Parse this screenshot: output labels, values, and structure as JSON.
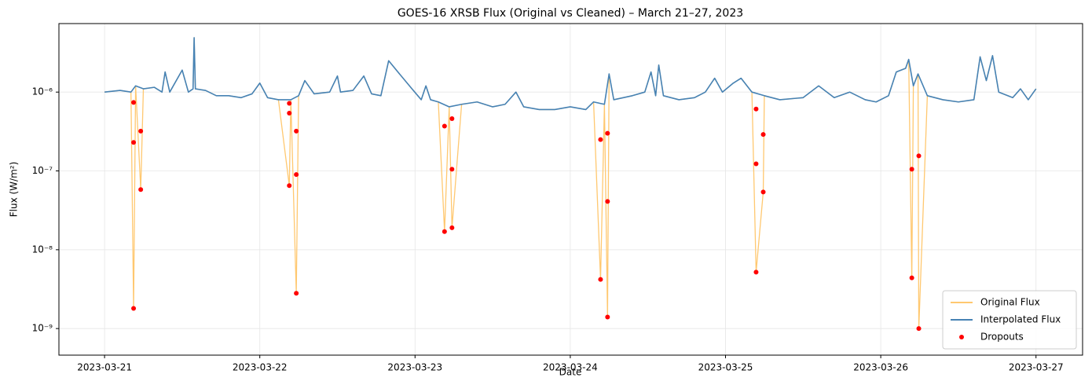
{
  "chart_data": {
    "type": "line",
    "title": "GOES-16 XRSB Flux (Original vs Cleaned) – March 21–27, 2023",
    "x_label": "Date",
    "y_label": "Flux (W/m²)",
    "xlim": [
      -0.294,
      6.3
    ],
    "xticks": [
      {
        "value": 0,
        "label": "2023-03-21"
      },
      {
        "value": 1,
        "label": "2023-03-22"
      },
      {
        "value": 2,
        "label": "2023-03-23"
      },
      {
        "value": 3,
        "label": "2023-03-24"
      },
      {
        "value": 4,
        "label": "2023-03-25"
      },
      {
        "value": 5,
        "label": "2023-03-26"
      },
      {
        "value": 6,
        "label": "2023-03-27"
      }
    ],
    "ylim": [
      4.6e-10,
      7.4e-06
    ],
    "yticks": [
      {
        "value": 1e-09,
        "label": "10⁻⁹"
      },
      {
        "value": 1e-08,
        "label": "10⁻⁸"
      },
      {
        "value": 1e-07,
        "label": "10⁻⁷"
      },
      {
        "value": 1e-06,
        "label": "10⁻⁶"
      }
    ],
    "log_y": true,
    "grid": true,
    "legend": "lower right",
    "series": [
      {
        "name": "Original Flux",
        "type": "line",
        "color": "#ffc870",
        "x": [
          0,
          0.1,
          0.17,
          0.187,
          0.2,
          0.233,
          0.25,
          0.32,
          0.37,
          0.39,
          0.42,
          0.5,
          0.54,
          0.57,
          0.577,
          0.585,
          0.65,
          0.72,
          0.8,
          0.88,
          0.95,
          1.0,
          1.05,
          1.12,
          1.19,
          1.2,
          1.235,
          1.25,
          1.29,
          1.35,
          1.45,
          1.5,
          1.52,
          1.6,
          1.67,
          1.72,
          1.78,
          1.83,
          1.9,
          1.98,
          2.04,
          2.07,
          2.1,
          2.15,
          2.19,
          2.22,
          2.238,
          2.3,
          2.4,
          2.5,
          2.58,
          2.65,
          2.7,
          2.8,
          2.9,
          3.0,
          3.1,
          3.15,
          3.195,
          3.22,
          3.24,
          3.25,
          3.28,
          3.4,
          3.48,
          3.52,
          3.55,
          3.57,
          3.6,
          3.7,
          3.8,
          3.87,
          3.93,
          3.98,
          4.05,
          4.1,
          4.17,
          4.197,
          4.243,
          4.25,
          4.35,
          4.5,
          4.6,
          4.7,
          4.8,
          4.9,
          4.97,
          5.05,
          5.1,
          5.16,
          5.18,
          5.2,
          5.21,
          5.24,
          5.245,
          5.3,
          5.4,
          5.5,
          5.6,
          5.64,
          5.68,
          5.72,
          5.76,
          5.85,
          5.9,
          5.95,
          6.0
        ],
        "values": [
          1e-06,
          1.05e-06,
          1e-06,
          1.8e-09,
          1.2e-06,
          5.8e-08,
          1.1e-06,
          1.15e-06,
          1e-06,
          1.8e-06,
          1e-06,
          1.9e-06,
          1e-06,
          1.1e-06,
          4.9e-06,
          1.1e-06,
          1.05e-06,
          9e-07,
          9e-07,
          8.5e-07,
          9.5e-07,
          1.3e-06,
          8.5e-07,
          8e-07,
          6.5e-08,
          8e-07,
          2.8e-09,
          9e-07,
          1.4e-06,
          9.5e-07,
          1e-06,
          1.6e-06,
          1e-06,
          1.05e-06,
          1.6e-06,
          9.5e-07,
          9e-07,
          2.5e-06,
          1.7e-06,
          1.1e-06,
          8e-07,
          1.2e-06,
          8e-07,
          7.5e-07,
          1.7e-08,
          6.5e-07,
          1.9e-08,
          7e-07,
          7.5e-07,
          6.5e-07,
          7e-07,
          1e-06,
          6.5e-07,
          6e-07,
          6e-07,
          6.5e-07,
          6e-07,
          7.5e-07,
          4.2e-09,
          7e-07,
          1.4e-09,
          1.7e-06,
          8e-07,
          9e-07,
          1e-06,
          1.8e-06,
          9e-07,
          2.2e-06,
          9e-07,
          8e-07,
          8.5e-07,
          1e-06,
          1.5e-06,
          1e-06,
          1.3e-06,
          1.5e-06,
          1e-06,
          5.2e-09,
          5.4e-08,
          9e-07,
          8e-07,
          8.5e-07,
          1.2e-06,
          8.5e-07,
          1e-06,
          8e-07,
          7.5e-07,
          9e-07,
          1.8e-06,
          2e-06,
          2.6e-06,
          4.4e-09,
          1.2e-06,
          1.7e-06,
          1e-09,
          9e-07,
          8e-07,
          7.5e-07,
          8e-07,
          2.8e-06,
          1.4e-06,
          2.9e-06,
          1e-06,
          8.5e-07,
          1.1e-06,
          8e-07,
          1.1e-06
        ]
      },
      {
        "name": "Interpolated Flux",
        "type": "line",
        "color": "#4682b4",
        "x": [
          0,
          0.1,
          0.17,
          0.2,
          0.25,
          0.32,
          0.37,
          0.39,
          0.42,
          0.5,
          0.54,
          0.57,
          0.577,
          0.585,
          0.65,
          0.72,
          0.8,
          0.88,
          0.95,
          1.0,
          1.05,
          1.12,
          1.2,
          1.25,
          1.29,
          1.35,
          1.45,
          1.5,
          1.52,
          1.6,
          1.67,
          1.72,
          1.78,
          1.83,
          1.9,
          1.98,
          2.04,
          2.07,
          2.1,
          2.15,
          2.22,
          2.3,
          2.4,
          2.5,
          2.58,
          2.65,
          2.7,
          2.8,
          2.9,
          3.0,
          3.1,
          3.15,
          3.22,
          3.25,
          3.28,
          3.4,
          3.48,
          3.52,
          3.55,
          3.57,
          3.6,
          3.7,
          3.8,
          3.87,
          3.93,
          3.98,
          4.05,
          4.1,
          4.17,
          4.25,
          4.35,
          4.5,
          4.6,
          4.7,
          4.8,
          4.9,
          4.97,
          5.05,
          5.1,
          5.16,
          5.18,
          5.21,
          5.24,
          5.3,
          5.4,
          5.5,
          5.6,
          5.64,
          5.68,
          5.72,
          5.76,
          5.85,
          5.9,
          5.95,
          6.0
        ],
        "values": [
          1e-06,
          1.05e-06,
          1e-06,
          1.2e-06,
          1.1e-06,
          1.15e-06,
          1e-06,
          1.8e-06,
          1e-06,
          1.9e-06,
          1e-06,
          1.1e-06,
          4.9e-06,
          1.1e-06,
          1.05e-06,
          9e-07,
          9e-07,
          8.5e-07,
          9.5e-07,
          1.3e-06,
          8.5e-07,
          8e-07,
          8e-07,
          9e-07,
          1.4e-06,
          9.5e-07,
          1e-06,
          1.6e-06,
          1e-06,
          1.05e-06,
          1.6e-06,
          9.5e-07,
          9e-07,
          2.5e-06,
          1.7e-06,
          1.1e-06,
          8e-07,
          1.2e-06,
          8e-07,
          7.5e-07,
          6.5e-07,
          7e-07,
          7.5e-07,
          6.5e-07,
          7e-07,
          1e-06,
          6.5e-07,
          6e-07,
          6e-07,
          6.5e-07,
          6e-07,
          7.5e-07,
          7e-07,
          1.7e-06,
          8e-07,
          9e-07,
          1e-06,
          1.8e-06,
          9e-07,
          2.2e-06,
          9e-07,
          8e-07,
          8.5e-07,
          1e-06,
          1.5e-06,
          1e-06,
          1.3e-06,
          1.5e-06,
          1e-06,
          9e-07,
          8e-07,
          8.5e-07,
          1.2e-06,
          8.5e-07,
          1e-06,
          8e-07,
          7.5e-07,
          9e-07,
          1.8e-06,
          2e-06,
          2.6e-06,
          1.2e-06,
          1.7e-06,
          9e-07,
          8e-07,
          7.5e-07,
          8e-07,
          2.8e-06,
          1.4e-06,
          2.9e-06,
          1e-06,
          8.5e-07,
          1.1e-06,
          8e-07,
          1.1e-06
        ]
      },
      {
        "name": "Dropouts",
        "type": "scatter",
        "color": "#ff0000",
        "x": [
          0.187,
          0.187,
          0.187,
          0.233,
          0.233,
          1.19,
          1.19,
          1.19,
          1.235,
          1.235,
          1.235,
          2.19,
          2.19,
          2.238,
          2.238,
          2.238,
          3.195,
          3.195,
          3.24,
          3.24,
          3.24,
          4.197,
          4.197,
          4.197,
          4.243,
          4.243,
          5.2,
          5.2,
          5.245,
          5.245
        ],
        "values": [
          7.4e-07,
          2.3e-07,
          1.8e-09,
          3.2e-07,
          5.8e-08,
          7.2e-07,
          5.4e-07,
          6.5e-08,
          3.2e-07,
          9e-08,
          2.8e-09,
          3.7e-07,
          1.7e-08,
          4.6e-07,
          1.05e-07,
          1.9e-08,
          2.5e-07,
          4.2e-09,
          3e-07,
          4.1e-08,
          1.4e-09,
          6.1e-07,
          1.23e-07,
          5.2e-09,
          2.9e-07,
          5.4e-08,
          1.05e-07,
          4.4e-09,
          1.55e-07,
          1e-09
        ]
      }
    ]
  }
}
